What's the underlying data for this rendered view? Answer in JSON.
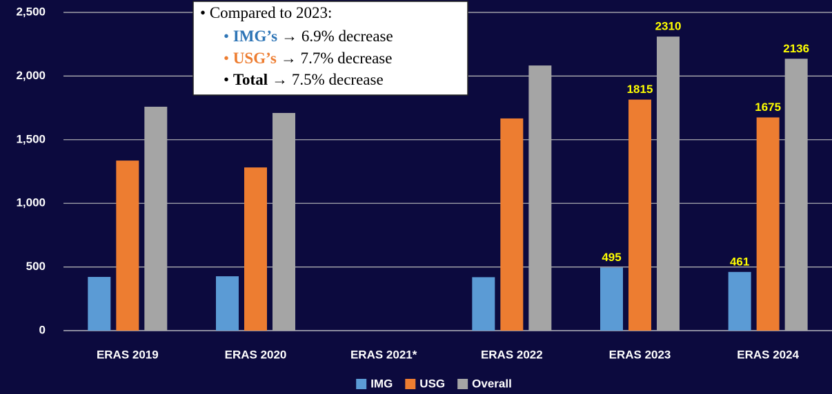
{
  "chart_data": {
    "type": "bar",
    "categories": [
      "ERAS 2019",
      "ERAS 2020",
      "ERAS 2021*",
      "ERAS 2022",
      "ERAS 2023",
      "ERAS 2024"
    ],
    "series": [
      {
        "name": "IMG",
        "color": "#5b9bd5",
        "values": [
          422,
          427,
          null,
          420,
          495,
          461
        ],
        "value_labels": [
          null,
          null,
          null,
          null,
          "495",
          "461"
        ]
      },
      {
        "name": "USG",
        "color": "#ed7d31",
        "values": [
          1336,
          1282,
          null,
          1667,
          1815,
          1675
        ],
        "value_labels": [
          null,
          null,
          null,
          null,
          "1815",
          "1675"
        ]
      },
      {
        "name": "Overall",
        "color": "#a5a5a5",
        "values": [
          1759,
          1710,
          null,
          2083,
          2310,
          2136
        ],
        "value_labels": [
          null,
          null,
          null,
          null,
          "2310",
          "2136"
        ]
      }
    ],
    "ylim": [
      0,
      2500
    ],
    "yticks": [
      0,
      {
        "value": 500,
        "label": "500"
      },
      {
        "value": 1000,
        "label": "1,000"
      },
      {
        "value": 1500,
        "label": "1,500"
      },
      {
        "value": 2000,
        "label": "2,000"
      },
      {
        "value": 2500,
        "label": "2,500"
      }
    ],
    "grid": true,
    "legend": "bottom",
    "annotation": {
      "heading": "Compared to 2023:",
      "items": [
        {
          "label": "IMG’s",
          "text": "→ 6.9% decrease",
          "color": "#2e75b6"
        },
        {
          "label": "USG’s",
          "text": "→ 7.7% decrease",
          "color": "#ed7d31"
        },
        {
          "label": "Total",
          "text": "→ 7.5% decrease",
          "color": "#000000"
        }
      ]
    }
  }
}
